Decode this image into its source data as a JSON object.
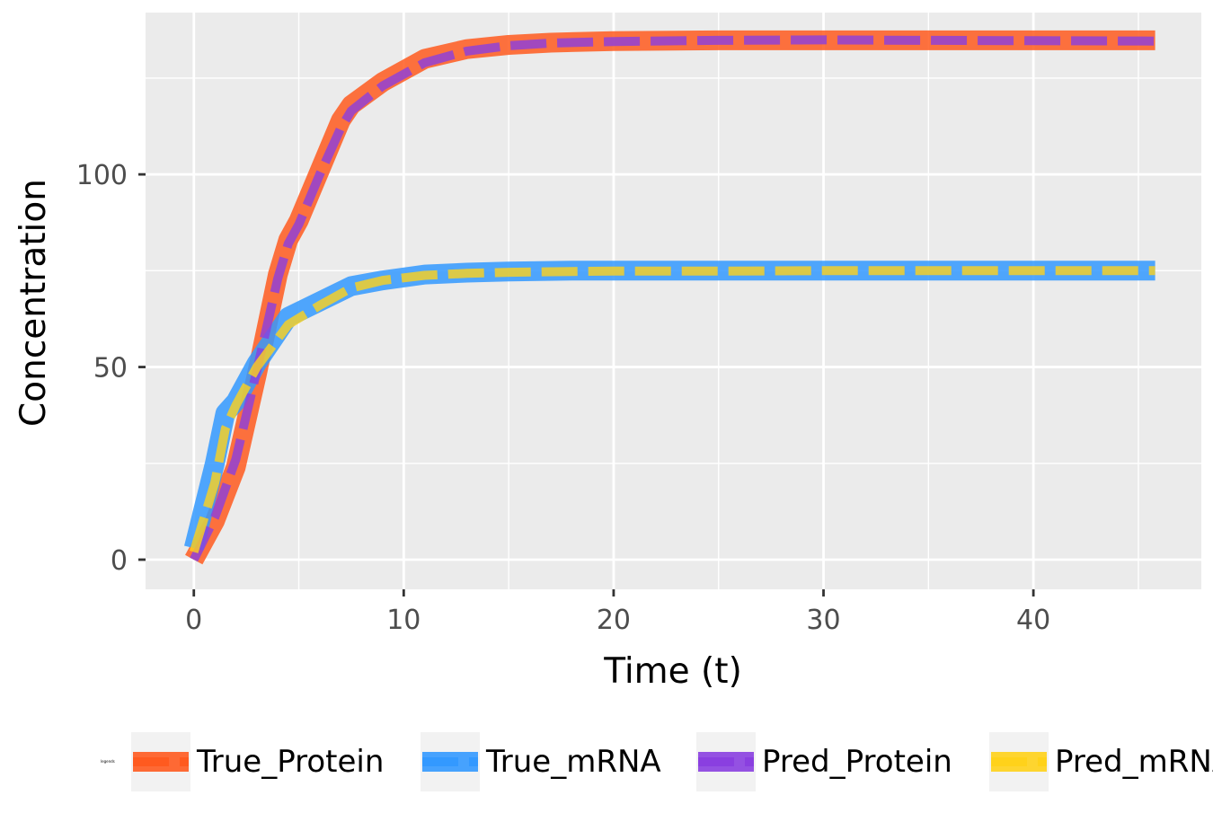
{
  "chart_data": {
    "type": "line",
    "title": "",
    "xlabel": "Time (t)",
    "ylabel": "Concentration",
    "xlim": [
      -2.3,
      48.0
    ],
    "ylim": [
      -7.7,
      142.0
    ],
    "xticks": [
      0,
      10,
      20,
      30,
      40
    ],
    "yticks": [
      0,
      50,
      100
    ],
    "grid": true,
    "legend": {
      "position": "bottom",
      "title": "legends",
      "entries": [
        "True_Protein",
        "True_mRNA",
        "Pred_Protein",
        "Pred_mRNA"
      ]
    },
    "series": [
      {
        "name": "True_Protein",
        "color": "#FF5A1F",
        "style": "solid",
        "x": [
          0,
          1,
          2,
          3,
          4,
          4.5,
          5,
          6,
          7,
          7.5,
          9,
          11,
          13,
          15,
          17,
          20,
          25,
          30,
          35,
          40,
          45.8
        ],
        "y": [
          0,
          10,
          24,
          48,
          74,
          83,
          88,
          101,
          114,
          118,
          124,
          130,
          132.5,
          133.6,
          134.2,
          134.6,
          134.8,
          134.8,
          134.8,
          134.8,
          134.8
        ]
      },
      {
        "name": "True_mRNA",
        "color": "#3399FF",
        "style": "solid",
        "x": [
          0,
          1,
          1.5,
          2,
          3,
          4.5,
          6,
          7.5,
          9,
          11,
          13,
          15,
          18,
          20,
          25,
          30,
          35,
          40,
          45.8
        ],
        "y": [
          3,
          25,
          38,
          41,
          51,
          63,
          67,
          71,
          72.5,
          74,
          74.5,
          74.8,
          75,
          75,
          75,
          75,
          75,
          75,
          75
        ]
      },
      {
        "name": "Pred_Protein",
        "color": "#8A3FE0",
        "style": "dashed",
        "x": [
          0,
          1,
          2,
          3,
          4,
          4.5,
          5,
          6,
          7,
          7.5,
          9,
          11,
          13,
          15,
          17,
          20,
          25,
          30,
          35,
          40,
          45.8
        ],
        "y": [
          0,
          11,
          26,
          49,
          73,
          82,
          87,
          100,
          112,
          116.5,
          123,
          129,
          132,
          133.4,
          134.1,
          134.5,
          134.8,
          134.9,
          134.8,
          134.7,
          134.6
        ]
      },
      {
        "name": "Pred_mRNA",
        "color": "#FFD21A",
        "style": "dashed",
        "x": [
          0,
          1,
          1.5,
          2,
          3,
          4.5,
          6,
          7.5,
          9,
          11,
          13,
          15,
          18,
          20,
          25,
          30,
          35,
          40,
          45.8
        ],
        "y": [
          2,
          20,
          34,
          40,
          50,
          61,
          66,
          70.5,
          72.5,
          73.8,
          74.3,
          74.6,
          74.8,
          74.9,
          74.9,
          75,
          75,
          75,
          75
        ]
      }
    ]
  }
}
